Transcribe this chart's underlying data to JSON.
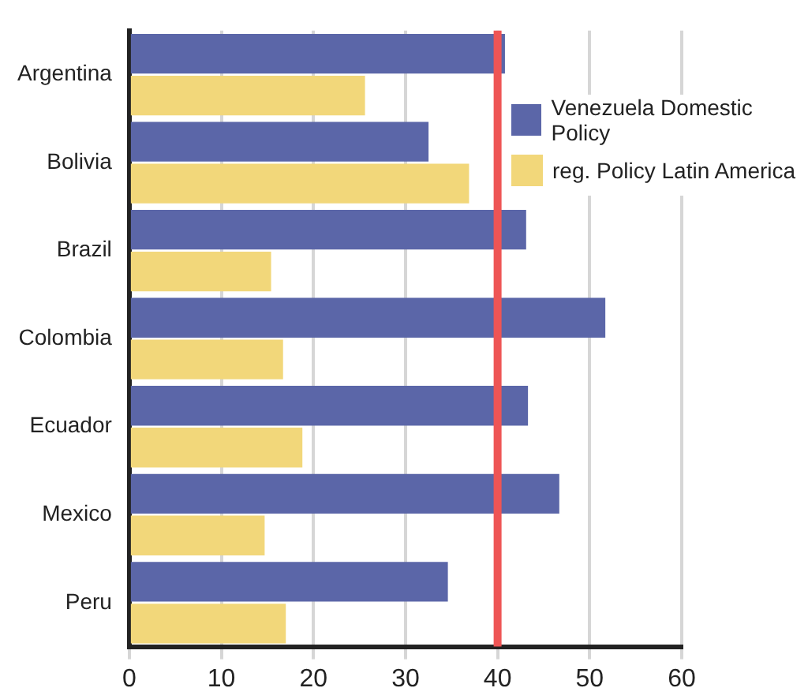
{
  "chart_data": {
    "type": "bar",
    "orientation": "horizontal",
    "categories": [
      "Argentina",
      "Bolivia",
      "Brazil",
      "Colombia",
      "Ecuador",
      "Mexico",
      "Peru"
    ],
    "series": [
      {
        "name": "Venezuela Domestic Policy",
        "color": "#5b66a8",
        "values": [
          40.8,
          32.5,
          43.1,
          51.7,
          43.3,
          46.7,
          34.6
        ]
      },
      {
        "name": "reg. Policy Latin America",
        "color": "#f2d77a",
        "values": [
          25.6,
          36.9,
          15.4,
          16.7,
          18.8,
          14.7,
          17.0
        ]
      }
    ],
    "xlim": [
      0,
      60
    ],
    "xticks": [
      0,
      10,
      20,
      30,
      40,
      50,
      60
    ],
    "grid": "x",
    "legend": "top right",
    "ref_lines": [
      {
        "axis": "x",
        "value": 40,
        "color": "#ee5555"
      }
    ]
  }
}
